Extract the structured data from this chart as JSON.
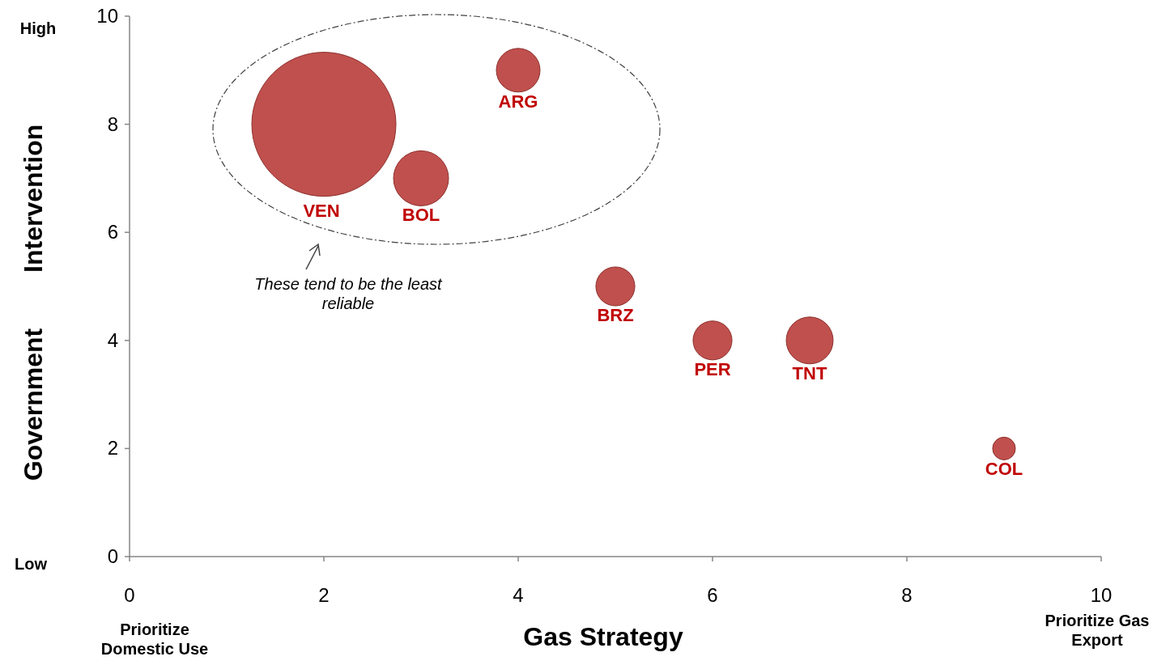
{
  "chart_data": {
    "type": "bubble",
    "xlabel": "Gas Strategy",
    "ylabel": "Government Intervention",
    "xlim": [
      0,
      10
    ],
    "ylim": [
      0,
      10
    ],
    "xticks": [
      0,
      2,
      4,
      6,
      8,
      10
    ],
    "yticks": [
      0,
      2,
      4,
      6,
      8,
      10
    ],
    "grid": false,
    "marker": "circle",
    "series": [
      {
        "color": "#c0504d",
        "x": [
          2,
          3,
          4,
          5,
          6,
          7,
          9
        ],
        "values": [
          8,
          7,
          9,
          5,
          4,
          4,
          2
        ],
        "sizes": [
          1,
          0.146,
          0.092,
          0.073,
          0.073,
          0.106,
          0.025
        ]
      }
    ],
    "annotations": [
      "High",
      "Low",
      "Prioritize Domestic Use",
      "Prioritize Gas Export",
      "These tend to be the least reliable",
      "VEN",
      {
        "text": "BOL",
        "x": 3,
        "y": 7
      },
      {
        "text": "ARG",
        "x": 4,
        "y": 9
      },
      {
        "text": "BRZ",
        "x": 5,
        "y": 5
      },
      {
        "text": "PER",
        "x": 6,
        "y": 4
      },
      {
        "text": "TNT",
        "x": 7,
        "y": 4
      },
      {
        "text": "COL",
        "x": 9,
        "y": 2
      }
    ]
  }
}
